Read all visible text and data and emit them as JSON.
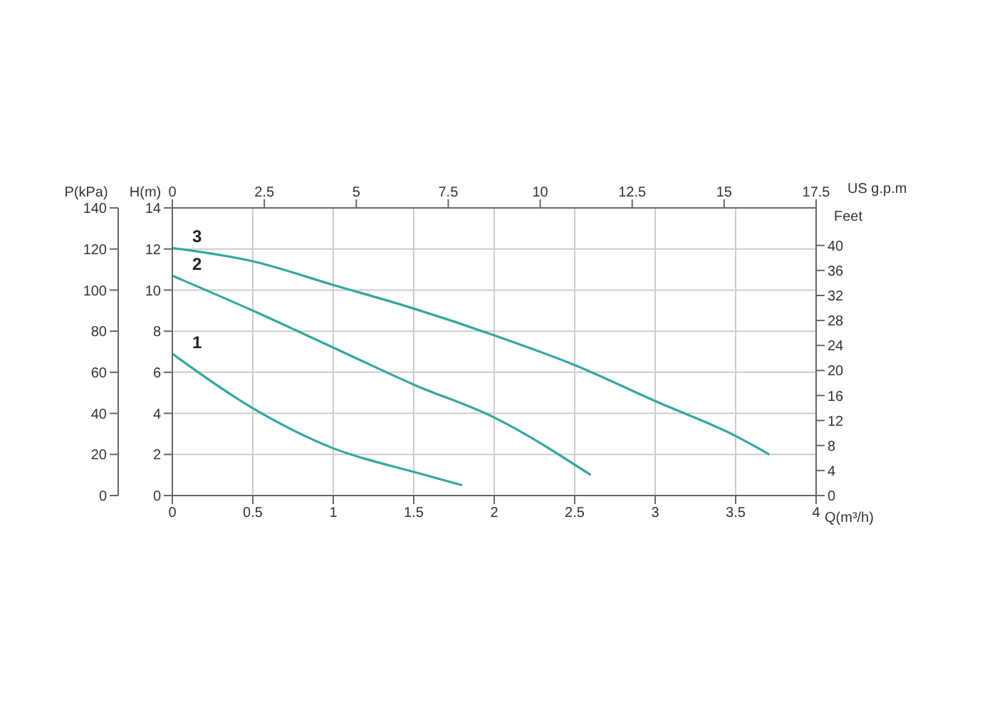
{
  "chart_data": {
    "type": "line",
    "xlabel": "Q(m³/h)",
    "x2label": "US  g.p.m",
    "ylabel": "H(m)",
    "y2label": "P(kPa)",
    "y3label": "Feet",
    "xlim": [
      0,
      4
    ],
    "xticks": [
      0,
      0.5,
      1,
      1.5,
      2,
      2.5,
      3,
      3.5,
      4
    ],
    "x2lim": [
      0,
      17.5
    ],
    "x2ticks": [
      0,
      2.5,
      5,
      7.5,
      10,
      12.5,
      15,
      17.5
    ],
    "ylim": [
      0,
      14
    ],
    "yticks": [
      0,
      2,
      4,
      6,
      8,
      10,
      12,
      14
    ],
    "y2lim": [
      0,
      140
    ],
    "y2ticks": [
      0,
      20,
      40,
      60,
      80,
      100,
      120,
      140
    ],
    "y3lim": [
      0,
      46
    ],
    "y3ticks": [
      0,
      4,
      8,
      12,
      16,
      20,
      24,
      28,
      32,
      36,
      40
    ],
    "grid": true,
    "marker": "none",
    "line_style": "solid",
    "series": [
      {
        "name": "1",
        "color": "#33a6a0",
        "x": [
          0,
          0.5,
          1,
          1.5,
          1.8
        ],
        "values": [
          6.9,
          4.25,
          2.3,
          1.15,
          0.5
        ]
      },
      {
        "name": "2",
        "color": "#33a6a0",
        "x": [
          0,
          0.5,
          1,
          1.5,
          2,
          2.6
        ],
        "values": [
          10.7,
          9.0,
          7.2,
          5.4,
          3.8,
          1.0
        ]
      },
      {
        "name": "3",
        "color": "#33a6a0",
        "x": [
          0,
          0.5,
          1,
          1.5,
          2,
          2.5,
          3,
          3.5,
          3.71
        ],
        "values": [
          12.05,
          11.4,
          10.25,
          9.1,
          7.8,
          6.35,
          4.6,
          2.9,
          2.0
        ]
      }
    ]
  }
}
